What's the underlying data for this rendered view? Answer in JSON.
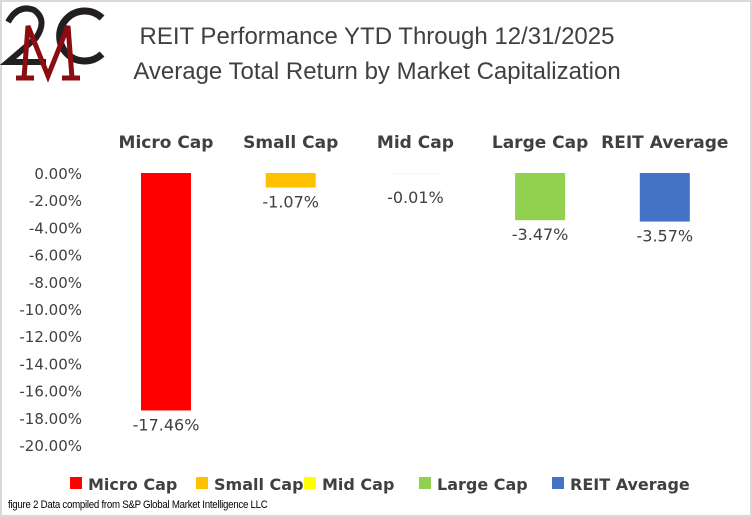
{
  "logo_text": "2MC",
  "caption": "figure 2 Data compiled from S&P Global Market Intelligence LLC",
  "chart_data": {
    "type": "bar",
    "title": "REIT Performance YTD Through 12/31/2025",
    "subtitle": "Average Total Return by Market Capitalization",
    "categories": [
      "Micro Cap",
      "Small Cap",
      "Mid Cap",
      "Large Cap",
      "REIT Average"
    ],
    "values": [
      -17.46,
      -1.07,
      -0.01,
      -3.47,
      -3.57
    ],
    "data_labels": [
      "-17.46%",
      "-1.07%",
      "-0.01%",
      "-3.47%",
      "-3.57%"
    ],
    "colors": [
      "#ff0000",
      "#ffc000",
      "#ffff00",
      "#92d050",
      "#4472c4"
    ],
    "ylim": [
      -20,
      0
    ],
    "yticks": [
      "0.00%",
      "-2.00%",
      "-4.00%",
      "-6.00%",
      "-8.00%",
      "-10.00%",
      "-12.00%",
      "-14.00%",
      "-16.00%",
      "-18.00%",
      "-20.00%"
    ],
    "grid": false,
    "legend_position": "bottom",
    "category_labels_position": "top"
  }
}
